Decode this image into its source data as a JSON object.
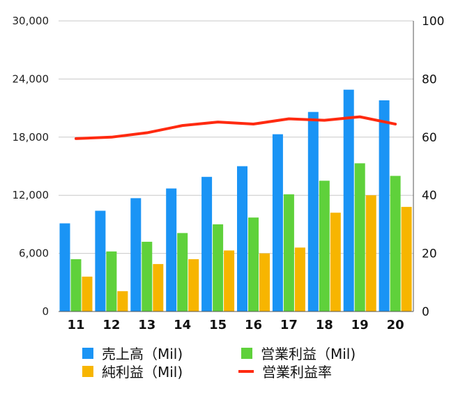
{
  "chart_data": {
    "type": "bar",
    "categories": [
      "11",
      "12",
      "13",
      "14",
      "15",
      "16",
      "17",
      "18",
      "19",
      "20"
    ],
    "series": [
      {
        "name": "売上高（Mil)",
        "type": "bar",
        "axis": "left",
        "color": "#1a94f5",
        "values": [
          9100,
          10400,
          11700,
          12700,
          13900,
          15000,
          18300,
          20600,
          22900,
          21800
        ]
      },
      {
        "name": "営業利益（Mil)",
        "type": "bar",
        "axis": "left",
        "color": "#5fd13b",
        "values": [
          5400,
          6200,
          7200,
          8100,
          9000,
          9700,
          12100,
          13500,
          15300,
          14000
        ]
      },
      {
        "name": "純利益（Mil)",
        "type": "bar",
        "axis": "left",
        "color": "#f7b500",
        "values": [
          3600,
          2100,
          4900,
          5400,
          6300,
          6000,
          6600,
          10200,
          12000,
          10800
        ]
      },
      {
        "name": "営業利益率",
        "type": "line",
        "axis": "right",
        "color": "#ff2a10",
        "values": [
          59.5,
          60,
          61.5,
          64,
          65.2,
          64.5,
          66.3,
          65.8,
          67,
          64.5
        ]
      }
    ],
    "y_left": {
      "min": 0,
      "max": 30000,
      "ticks": [
        "0",
        "6,000",
        "12,000",
        "18,000",
        "24,000",
        "30,000"
      ]
    },
    "y_right": {
      "min": 0,
      "max": 100,
      "ticks": [
        "0",
        "20",
        "40",
        "60",
        "80",
        "100"
      ]
    },
    "grid": true,
    "legend_position": "bottom"
  },
  "legend": [
    {
      "label": "売上高（Mil)",
      "color": "#1a94f5",
      "kind": "box"
    },
    {
      "label": "営業利益（Mil)",
      "color": "#5fd13b",
      "kind": "box"
    },
    {
      "label": "純利益（Mil)",
      "color": "#f7b500",
      "kind": "box"
    },
    {
      "label": "営業利益率",
      "color": "#ff2a10",
      "kind": "line"
    }
  ]
}
